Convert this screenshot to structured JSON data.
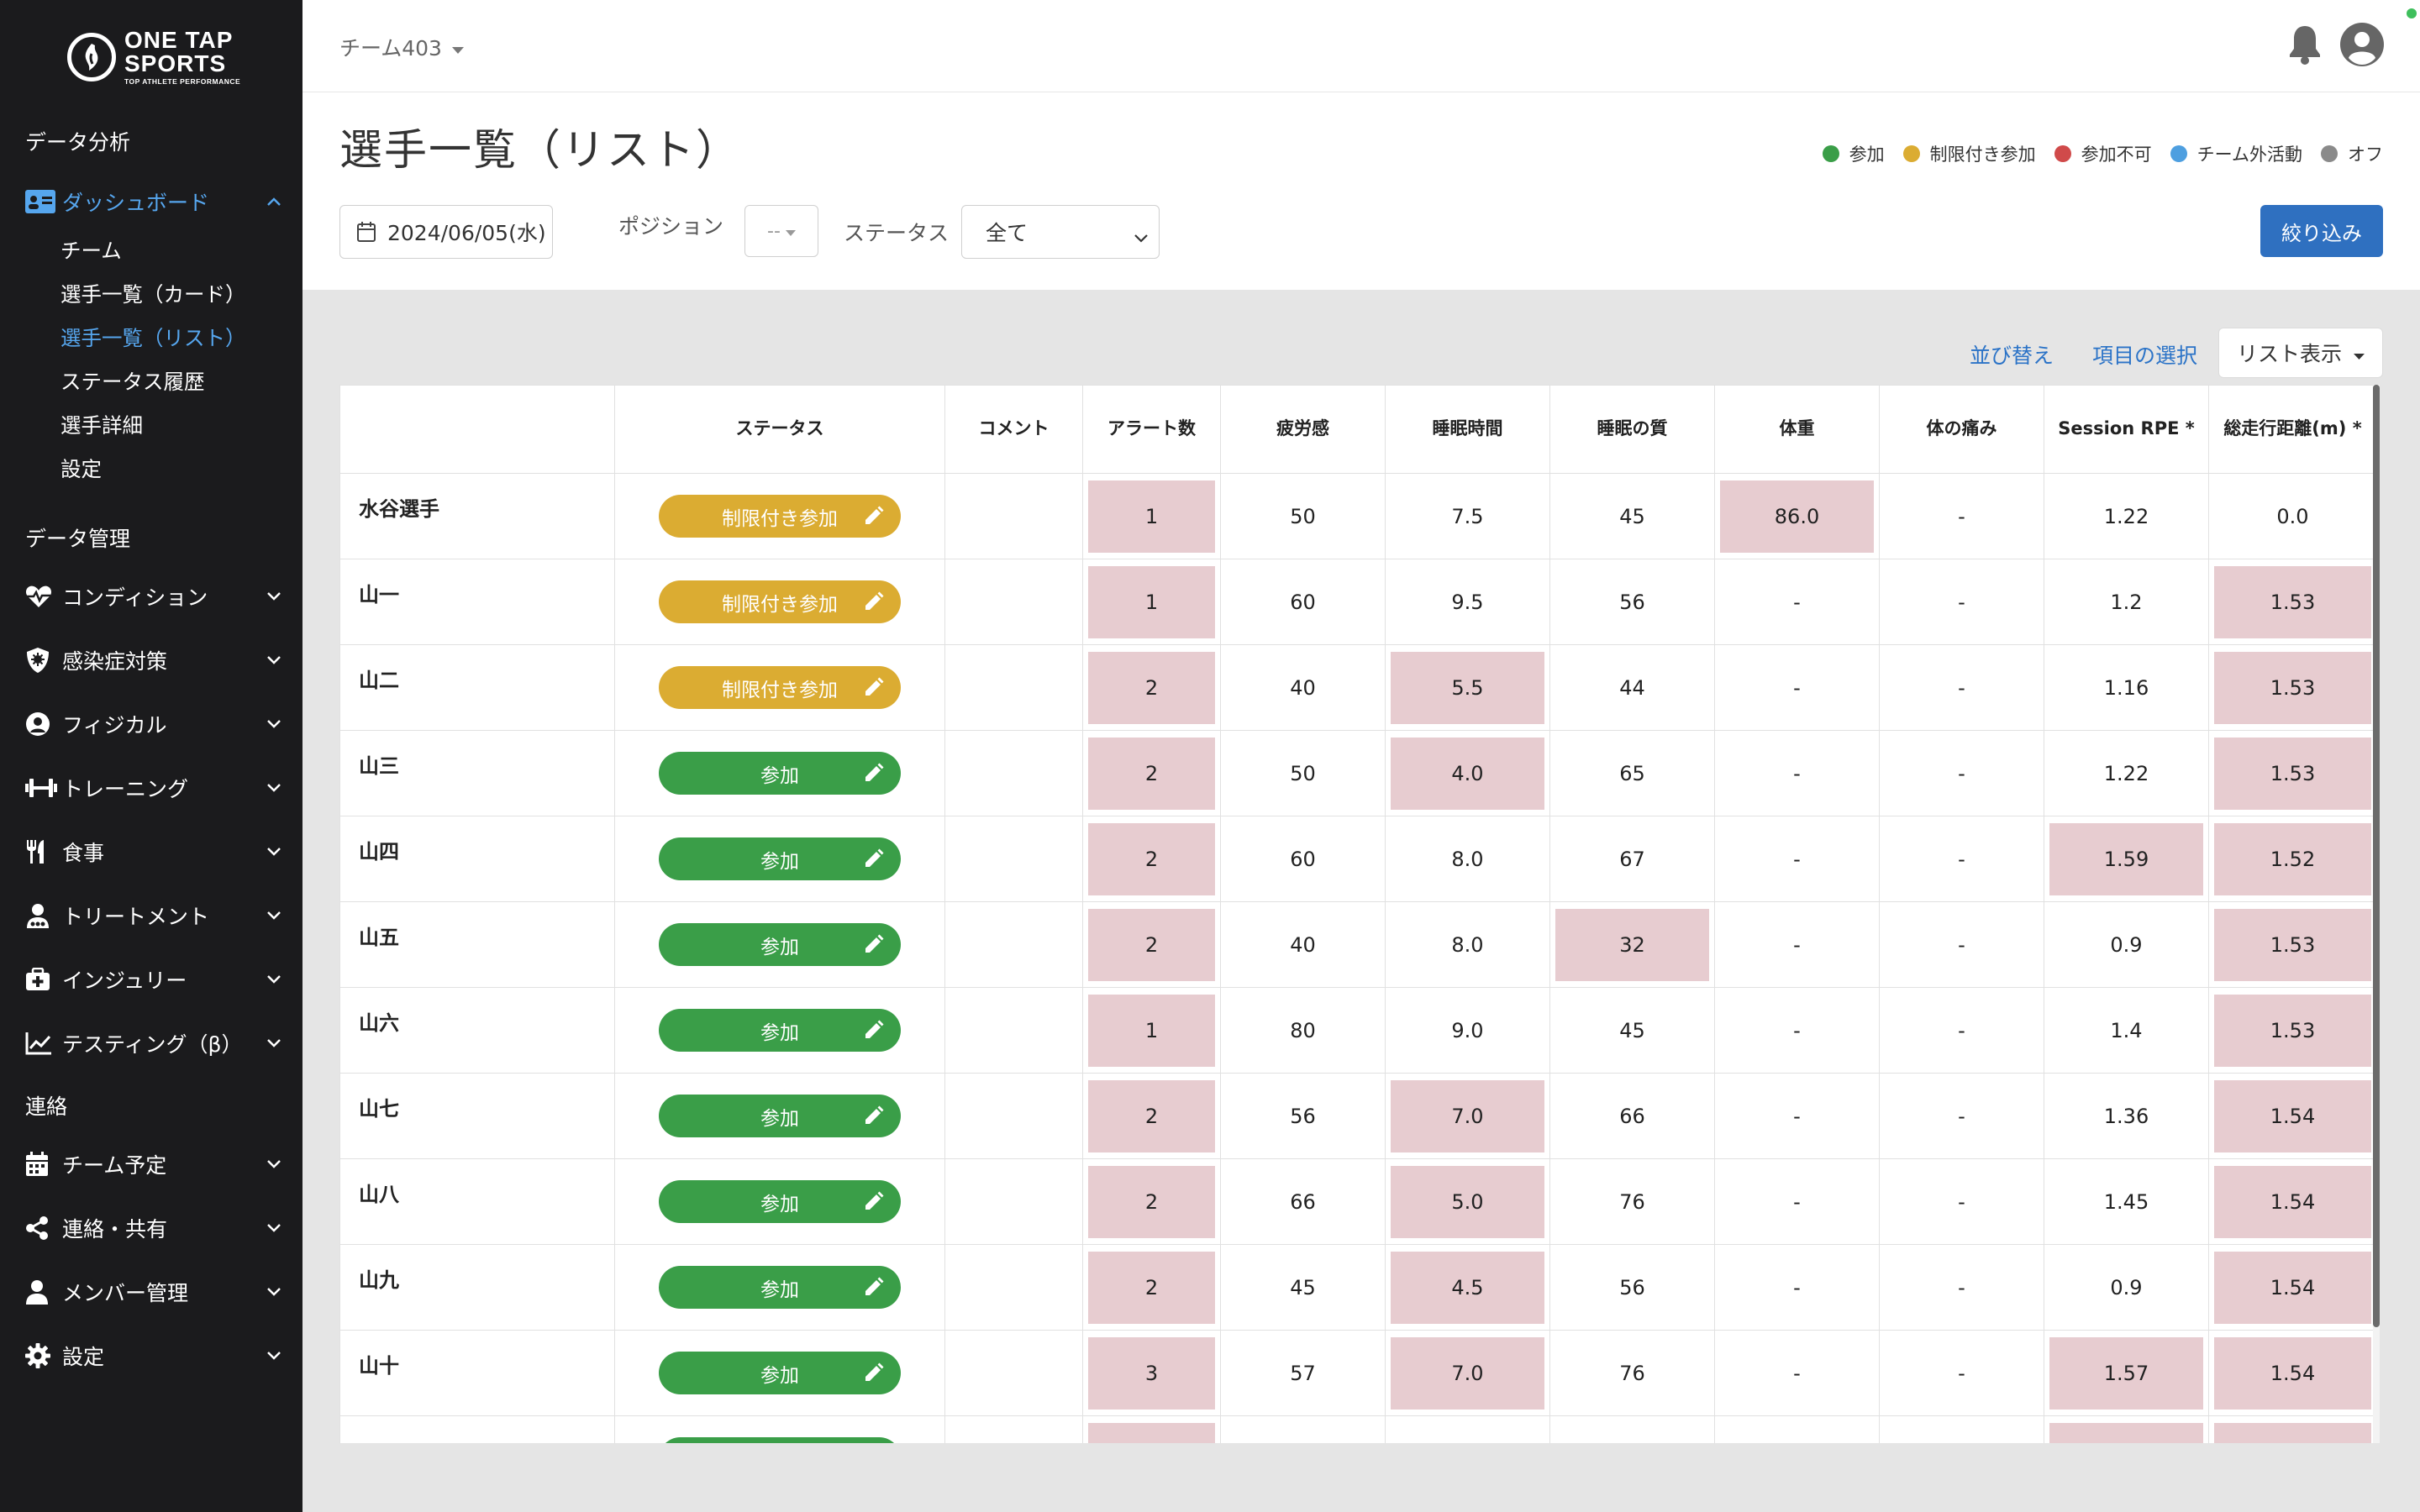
{
  "app": {
    "logo_line1": "ONE TAP",
    "logo_line2": "SPORTS",
    "logo_line3": "TOP ATHLETE PERFORMANCE"
  },
  "sidebar": {
    "section_analysis": "データ分析",
    "dashboard_label": "ダッシュボード",
    "dashboard_subitems": [
      "チーム",
      "選手一覧（カード）",
      "選手一覧（リスト）",
      "ステータス履歴",
      "選手詳細",
      "設定"
    ],
    "active_subitem": "選手一覧（リスト）",
    "section_data": "データ管理",
    "data_items": [
      {
        "label": "コンディション",
        "icon": "heartbeat-icon"
      },
      {
        "label": "感染症対策",
        "icon": "virus-shield-icon"
      },
      {
        "label": "フィジカル",
        "icon": "user-circle-icon"
      },
      {
        "label": "トレーニング",
        "icon": "dumbbell-icon"
      },
      {
        "label": "食事",
        "icon": "utensils-icon"
      },
      {
        "label": "トリートメント",
        "icon": "treatment-icon"
      },
      {
        "label": "インジュリー",
        "icon": "first-aid-icon"
      },
      {
        "label": "テスティング（β）",
        "icon": "chart-line-icon"
      }
    ],
    "section_contact": "連絡",
    "contact_items": [
      {
        "label": "チーム予定",
        "icon": "calendar-icon"
      },
      {
        "label": "連絡・共有",
        "icon": "share-icon"
      },
      {
        "label": "メンバー管理",
        "icon": "user-icon"
      },
      {
        "label": "設定",
        "icon": "gear-icon"
      }
    ]
  },
  "header": {
    "team_name": "チーム403"
  },
  "page": {
    "title": "選手一覧（リスト）"
  },
  "legend": [
    {
      "label": "参加",
      "color": "#3a9e48"
    },
    {
      "label": "制限付き参加",
      "color": "#dbac32"
    },
    {
      "label": "参加不可",
      "color": "#d04a4a"
    },
    {
      "label": "チーム外活動",
      "color": "#4e9fe0"
    },
    {
      "label": "オフ",
      "color": "#8a8a8a"
    }
  ],
  "filters": {
    "date": "2024/06/05(水)",
    "position_label": "ポジション",
    "position_value": "--",
    "status_label": "ステータス",
    "status_value": "全て",
    "submit_label": "絞り込み"
  },
  "table_tools": {
    "sort_label": "並び替え",
    "columns_label": "項目の選択",
    "view_label": "リスト表示"
  },
  "colors": {
    "participate": "#3a9e48",
    "limited": "#dbac32",
    "highlight": "#e7ccd0",
    "accent": "#2f70c0"
  },
  "table": {
    "columns": [
      "",
      "ステータス",
      "コメント",
      "アラート数",
      "疲労感",
      "睡眠時間",
      "睡眠の質",
      "体重",
      "体の痛み",
      "Session RPE *",
      "総走行距離(m) *"
    ],
    "rows": [
      {
        "name": "水谷選手",
        "status": "制限付き参加",
        "type": "limited",
        "comment": "",
        "cells": [
          "1",
          "50",
          "7.5",
          "45",
          "86.0",
          "-",
          "1.22",
          "0.0"
        ],
        "hl": [
          true,
          false,
          false,
          false,
          true,
          false,
          false,
          false
        ]
      },
      {
        "name": "山一",
        "status": "制限付き参加",
        "type": "limited",
        "comment": "",
        "cells": [
          "1",
          "60",
          "9.5",
          "56",
          "-",
          "-",
          "1.2",
          "1.53"
        ],
        "hl": [
          true,
          false,
          false,
          false,
          false,
          false,
          false,
          true
        ]
      },
      {
        "name": "山二",
        "status": "制限付き参加",
        "type": "limited",
        "comment": "",
        "cells": [
          "2",
          "40",
          "5.5",
          "44",
          "-",
          "-",
          "1.16",
          "1.53"
        ],
        "hl": [
          true,
          false,
          true,
          false,
          false,
          false,
          false,
          true
        ]
      },
      {
        "name": "山三",
        "status": "参加",
        "type": "participate",
        "comment": "",
        "cells": [
          "2",
          "50",
          "4.0",
          "65",
          "-",
          "-",
          "1.22",
          "1.53"
        ],
        "hl": [
          true,
          false,
          true,
          false,
          false,
          false,
          false,
          true
        ]
      },
      {
        "name": "山四",
        "status": "参加",
        "type": "participate",
        "comment": "",
        "cells": [
          "2",
          "60",
          "8.0",
          "67",
          "-",
          "-",
          "1.59",
          "1.52"
        ],
        "hl": [
          true,
          false,
          false,
          false,
          false,
          false,
          true,
          true
        ]
      },
      {
        "name": "山五",
        "status": "参加",
        "type": "participate",
        "comment": "",
        "cells": [
          "2",
          "40",
          "8.0",
          "32",
          "-",
          "-",
          "0.9",
          "1.53"
        ],
        "hl": [
          true,
          false,
          false,
          true,
          false,
          false,
          false,
          true
        ]
      },
      {
        "name": "山六",
        "status": "参加",
        "type": "participate",
        "comment": "",
        "cells": [
          "1",
          "80",
          "9.0",
          "45",
          "-",
          "-",
          "1.4",
          "1.53"
        ],
        "hl": [
          true,
          false,
          false,
          false,
          false,
          false,
          false,
          true
        ]
      },
      {
        "name": "山七",
        "status": "参加",
        "type": "participate",
        "comment": "",
        "cells": [
          "2",
          "56",
          "7.0",
          "66",
          "-",
          "-",
          "1.36",
          "1.54"
        ],
        "hl": [
          true,
          false,
          true,
          false,
          false,
          false,
          false,
          true
        ]
      },
      {
        "name": "山八",
        "status": "参加",
        "type": "participate",
        "comment": "",
        "cells": [
          "2",
          "66",
          "5.0",
          "76",
          "-",
          "-",
          "1.45",
          "1.54"
        ],
        "hl": [
          true,
          false,
          true,
          false,
          false,
          false,
          false,
          true
        ]
      },
      {
        "name": "山九",
        "status": "参加",
        "type": "participate",
        "comment": "",
        "cells": [
          "2",
          "45",
          "4.5",
          "56",
          "-",
          "-",
          "0.9",
          "1.54"
        ],
        "hl": [
          true,
          false,
          true,
          false,
          false,
          false,
          false,
          true
        ]
      },
      {
        "name": "山十",
        "status": "参加",
        "type": "participate",
        "comment": "",
        "cells": [
          "3",
          "57",
          "7.0",
          "76",
          "-",
          "-",
          "1.57",
          "1.54"
        ],
        "hl": [
          true,
          false,
          true,
          false,
          false,
          false,
          true,
          true
        ]
      },
      {
        "name": "",
        "status": "",
        "type": "participate",
        "comment": "",
        "cells": [
          "",
          "",
          "",
          "",
          "",
          "",
          "",
          ""
        ],
        "hl": [
          true,
          false,
          false,
          false,
          false,
          false,
          true,
          true
        ]
      }
    ]
  }
}
